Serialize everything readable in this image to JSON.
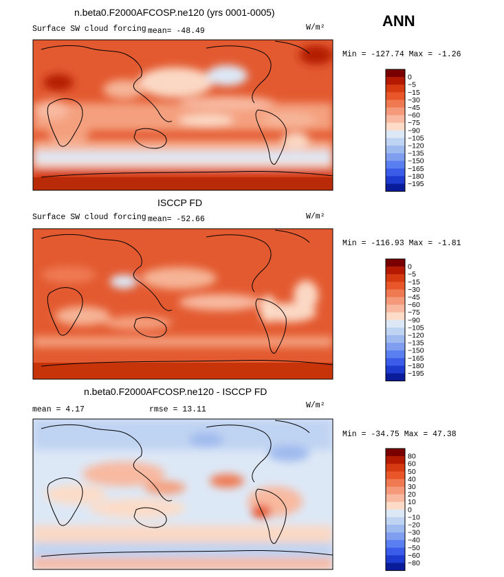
{
  "season": "ANN",
  "units": "W/m²",
  "panels": [
    {
      "title": "n.beta0.F2000AFCOSP.ne120 (yrs 0001-0005)",
      "variable": "Surface SW cloud forcing",
      "mean": "mean=  -48.49",
      "minmax": "Min = -127.74 Max =  -1.26"
    },
    {
      "title": "ISCCP FD",
      "variable": "Surface SW cloud forcing",
      "mean": "mean=  -52.66",
      "minmax": "Min = -116.93 Max =  -1.81"
    },
    {
      "title": "n.beta0.F2000AFCOSP.ne120 - ISCCP FD",
      "mean": "mean =   4.17",
      "rmse": "rmse =  13.11",
      "minmax": "Min = -34.75 Max =  47.38"
    }
  ],
  "colors": {
    "field_levels": [
      "#7a0000",
      "#b31a00",
      "#d63a10",
      "#e8562a",
      "#ef7a52",
      "#f49a7a",
      "#f8b9a0",
      "#fcdcc8",
      "#dde8f6",
      "#bfd3f2",
      "#9fbaee",
      "#7f9ef0",
      "#5a7ff0",
      "#3a5ce8",
      "#1e3bd0",
      "#0b1c9a"
    ],
    "diff_levels": [
      "#7a0000",
      "#b31a00",
      "#d63a10",
      "#e8562a",
      "#ef7a52",
      "#f49a7a",
      "#f8b9a0",
      "#fcdcc8",
      "#dde8f6",
      "#bfd3f2",
      "#9fbaee",
      "#7f9ef0",
      "#5a7ff0",
      "#3a5ce8",
      "#1e3bd0",
      "#0b1c9a"
    ]
  },
  "chart_data": [
    {
      "type": "heatmap",
      "title": "n.beta0.F2000AFCOSP.ne120 (yrs 0001-0005)",
      "subtitle": "Surface SW cloud forcing",
      "units": "W/m²",
      "mean": -48.49,
      "min": -127.74,
      "max": -1.26,
      "colorbar_levels": [
        0,
        -5,
        -15,
        -30,
        -45,
        -60,
        -75,
        -90,
        -105,
        -120,
        -135,
        -150,
        -165,
        -180,
        -195
      ],
      "colorbar_labels": [
        "0",
        "−5",
        "−15",
        "−30",
        "−45",
        "−60",
        "−75",
        "−90",
        "−105",
        "−120",
        "−135",
        "−150",
        "−165",
        "−180",
        "−195"
      ]
    },
    {
      "type": "heatmap",
      "title": "ISCCP FD",
      "subtitle": "Surface SW cloud forcing",
      "units": "W/m²",
      "mean": -52.66,
      "min": -116.93,
      "max": -1.81,
      "colorbar_levels": [
        0,
        -5,
        -15,
        -30,
        -45,
        -60,
        -75,
        -90,
        -105,
        -120,
        -135,
        -150,
        -165,
        -180,
        -195
      ],
      "colorbar_labels": [
        "0",
        "−5",
        "−15",
        "−30",
        "−45",
        "−60",
        "−75",
        "−90",
        "−105",
        "−120",
        "−135",
        "−150",
        "−165",
        "−180",
        "−195"
      ]
    },
    {
      "type": "heatmap",
      "title": "n.beta0.F2000AFCOSP.ne120 - ISCCP FD",
      "units": "W/m²",
      "mean": 4.17,
      "rmse": 13.11,
      "min": -34.75,
      "max": 47.38,
      "colorbar_levels": [
        80,
        60,
        50,
        40,
        30,
        20,
        10,
        0,
        -10,
        -20,
        -30,
        -40,
        -50,
        -60,
        -80
      ],
      "colorbar_labels": [
        "80",
        "60",
        "50",
        "40",
        "30",
        "20",
        "10",
        "0",
        "−10",
        "−20",
        "−30",
        "−40",
        "−50",
        "−60",
        "−80"
      ]
    }
  ]
}
